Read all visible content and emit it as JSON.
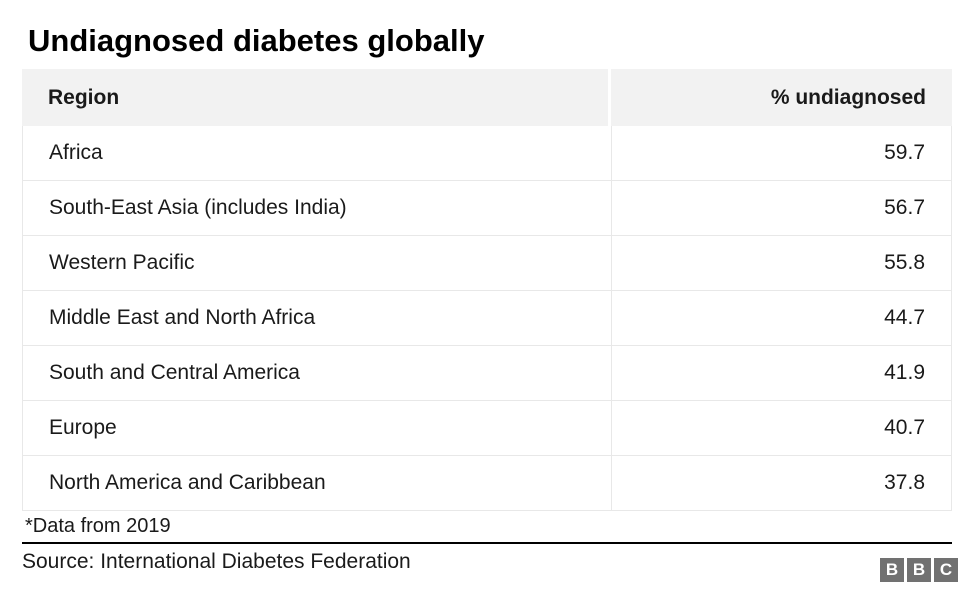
{
  "title": "Undiagnosed diabetes globally",
  "chart_data": {
    "type": "table",
    "title": "Undiagnosed diabetes globally",
    "columns": [
      "Region",
      "% undiagnosed"
    ],
    "rows": [
      [
        "Africa",
        "59.7"
      ],
      [
        "South-East Asia (includes India)",
        "56.7"
      ],
      [
        "Western Pacific",
        "55.8"
      ],
      [
        "Middle East and North Africa",
        "44.7"
      ],
      [
        "South and Central America",
        "41.9"
      ],
      [
        "Europe",
        "40.7"
      ],
      [
        "North America and Caribbean",
        "37.8"
      ]
    ],
    "footnote": "*Data from 2019",
    "source": "Source: International Diabetes Federation",
    "layout": {
      "value_alignment": "right",
      "header_background": "#f2f2f2",
      "row_border_color": "#e8e8e8",
      "divider_color": "#000000"
    }
  },
  "logo": {
    "name": "BBC",
    "letters": [
      "B",
      "B",
      "C"
    ],
    "block_color": "#717171",
    "letter_color": "#ffffff"
  }
}
